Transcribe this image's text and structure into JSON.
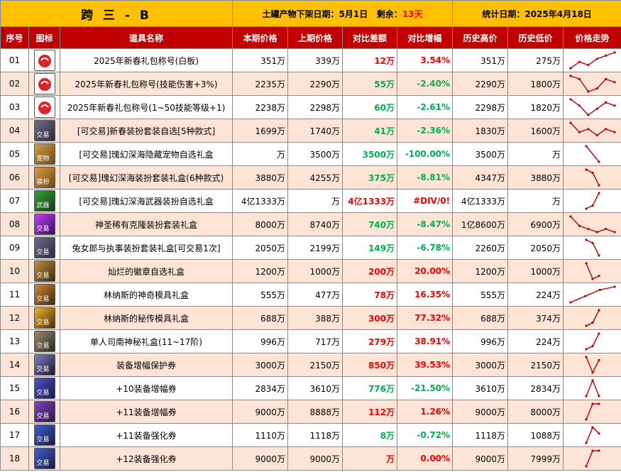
{
  "header": {
    "title": "跨 三 - B",
    "remove_label": "土罐产物下架日期：",
    "remove_date": "5月1日",
    "remain_label": "剩余：",
    "remain_value": "13天",
    "stat_label": "统计日期：",
    "stat_date": "2025年4月18日"
  },
  "columns": [
    "序号",
    "图标",
    "道具名称",
    "本期价格",
    "上期价格",
    "对比差额",
    "对比增幅",
    "历史高价",
    "历史低价",
    "价格走势"
  ],
  "colors": {
    "up": "#ff0000",
    "down": "#00b050",
    "header_bg": "#c00000",
    "title_bg": "#ffc000",
    "alt_row": "#fce4d6"
  },
  "rows": [
    {
      "no": "01",
      "name": "2025年新春礼包称号(白板)",
      "cur": "351万",
      "prev": "339万",
      "diff": "12万",
      "pct": "3.54%",
      "trend": "up",
      "high": "351万",
      "low": "275万",
      "icon": "red-heart-title-icon",
      "icon_label": "",
      "spark": [
        5,
        3,
        4,
        2,
        1,
        0
      ]
    },
    {
      "no": "02",
      "name": "2025年新春礼包称号(技能伤害+3%)",
      "cur": "2235万",
      "prev": "2290万",
      "diff": "55万",
      "pct": "-2.40%",
      "trend": "down",
      "high": "2290万",
      "low": "1800万",
      "icon": "red-heart-title-icon",
      "icon_label": "",
      "spark": [
        0,
        1,
        5,
        4,
        1,
        2
      ]
    },
    {
      "no": "03",
      "name": "2025年新春礼包称号(1~50技能等级+1)",
      "cur": "2238万",
      "prev": "2298万",
      "diff": "60万",
      "pct": "-2.61%",
      "trend": "down",
      "high": "2298万",
      "low": "1820万",
      "icon": "red-heart-title-icon",
      "icon_label": "",
      "spark": [
        0,
        2,
        5,
        3,
        1,
        2
      ]
    },
    {
      "no": "04",
      "name": "[可交易]新春装扮套装自选[5种款式]",
      "cur": "1699万",
      "prev": "1740万",
      "diff": "41万",
      "pct": "-2.36%",
      "trend": "down",
      "high": "1830万",
      "low": "1600万",
      "icon": "avatar-box-icon",
      "icon_label": "交易",
      "spark": [
        0,
        3,
        2,
        4,
        2,
        3
      ]
    },
    {
      "no": "05",
      "name": "[可交易]瑰幻深海隐藏宠物自选礼盒",
      "cur": "万",
      "prev": "3500万",
      "diff": "3500万",
      "pct": "-100.00%",
      "trend": "down",
      "high": "3500万",
      "low": "万",
      "icon": "treasure-chest-icon",
      "icon_label": "宠物",
      "spark": [
        0,
        5
      ]
    },
    {
      "no": "06",
      "name": "[可交易]瑰幻深海装扮套装礼盒(6种款式)",
      "cur": "3880万",
      "prev": "4255万",
      "diff": "375万",
      "pct": "-8.81%",
      "trend": "down",
      "high": "4347万",
      "low": "3880万",
      "icon": "treasure-chest-icon",
      "icon_label": "装扮",
      "spark": [
        0,
        1,
        5
      ]
    },
    {
      "no": "07",
      "name": "[可交易]瑰幻深海武器装扮自选礼盒",
      "cur": "4亿1333万",
      "prev": "万",
      "diff": "4亿1333万",
      "pct": "#DIV/0!",
      "trend": "up",
      "high": "4亿1333万",
      "low": "万",
      "icon": "weapon-box-icon",
      "icon_label": "武器",
      "spark": [
        5,
        4,
        0
      ]
    },
    {
      "no": "08",
      "name": "神圣稀有克隆装扮套装礼盒",
      "cur": "8000万",
      "prev": "8740万",
      "diff": "740万",
      "pct": "-8.47%",
      "trend": "down",
      "high": "1亿8600万",
      "low": "6900万",
      "icon": "purple-clone-box-icon",
      "icon_label": "交易",
      "spark": [
        0,
        3,
        4,
        5,
        4,
        5
      ]
    },
    {
      "no": "09",
      "name": "兔女郎与执事装扮套装礼盒[可交易1次]",
      "cur": "2050万",
      "prev": "2199万",
      "diff": "149万",
      "pct": "-6.78%",
      "trend": "down",
      "high": "2260万",
      "low": "2050万",
      "icon": "avatar-box-icon",
      "icon_label": "交易",
      "spark": [
        0,
        1,
        5
      ]
    },
    {
      "no": "10",
      "name": "灿烂的徽章自选礼盒",
      "cur": "1200万",
      "prev": "1000万",
      "diff": "200万",
      "pct": "20.00%",
      "trend": "up",
      "high": "1200万",
      "low": "1000万",
      "icon": "emblem-box-icon",
      "icon_label": "交易",
      "spark": [
        0,
        5,
        4
      ]
    },
    {
      "no": "11",
      "name": "林纳斯的神奇模具礼盒",
      "cur": "555万",
      "prev": "477万",
      "diff": "78万",
      "pct": "16.35%",
      "trend": "up",
      "high": "555万",
      "low": "224万",
      "icon": "mold-box-icon",
      "icon_label": "交易",
      "spark": [
        5,
        3,
        1,
        0
      ]
    },
    {
      "no": "12",
      "name": "林纳斯的秘传模具礼盒",
      "cur": "688万",
      "prev": "388万",
      "diff": "300万",
      "pct": "77.32%",
      "trend": "up",
      "high": "688万",
      "low": "374万",
      "icon": "mold-box-gold-icon",
      "icon_label": "交易",
      "spark": [
        5,
        4,
        0
      ]
    },
    {
      "no": "13",
      "name": "单人司南神秘礼盒(11~17阶)",
      "cur": "996万",
      "prev": "717万",
      "diff": "279万",
      "pct": "38.91%",
      "trend": "up",
      "high": "996万",
      "low": "224万",
      "icon": "mystery-box-icon",
      "icon_label": "交易",
      "spark": [
        5,
        4,
        0
      ]
    },
    {
      "no": "14",
      "name": "装备增幅保护券",
      "cur": "3000万",
      "prev": "2150万",
      "diff": "850万",
      "pct": "39.53%",
      "trend": "up",
      "high": "3000万",
      "low": "2150万",
      "icon": "protect-ticket-icon",
      "icon_label": "交易",
      "spark": [
        0,
        5,
        1
      ]
    },
    {
      "no": "15",
      "name": "+10装备增幅券",
      "cur": "2834万",
      "prev": "3610万",
      "diff": "776万",
      "pct": "-21.50%",
      "trend": "down",
      "high": "3610万",
      "low": "2834万",
      "icon": "amplify-ticket-10-icon",
      "icon_label": "交易",
      "spark": [
        5,
        0,
        5
      ]
    },
    {
      "no": "16",
      "name": "+11装备增幅券",
      "cur": "9000万",
      "prev": "8888万",
      "diff": "112万",
      "pct": "1.26%",
      "trend": "up",
      "high": "9000万",
      "low": "8000万",
      "icon": "amplify-ticket-11-icon",
      "icon_label": "交易",
      "spark": [
        5,
        0,
        0
      ]
    },
    {
      "no": "17",
      "name": "+11装备强化券",
      "cur": "1110万",
      "prev": "1118万",
      "diff": "8万",
      "pct": "-0.72%",
      "trend": "down",
      "high": "1118万",
      "low": "1088万",
      "icon": "reinforce-ticket-11-icon",
      "icon_label": "交易",
      "spark": [
        5,
        0,
        2
      ]
    },
    {
      "no": "18",
      "name": "+12装备强化券",
      "cur": "9000万",
      "prev": "9000万",
      "diff": "万",
      "pct": "0.00%",
      "trend": "up",
      "high": "9000万",
      "low": "7999万",
      "icon": "reinforce-ticket-12-icon",
      "icon_label": "交易",
      "spark": [
        5,
        0,
        0
      ]
    }
  ]
}
